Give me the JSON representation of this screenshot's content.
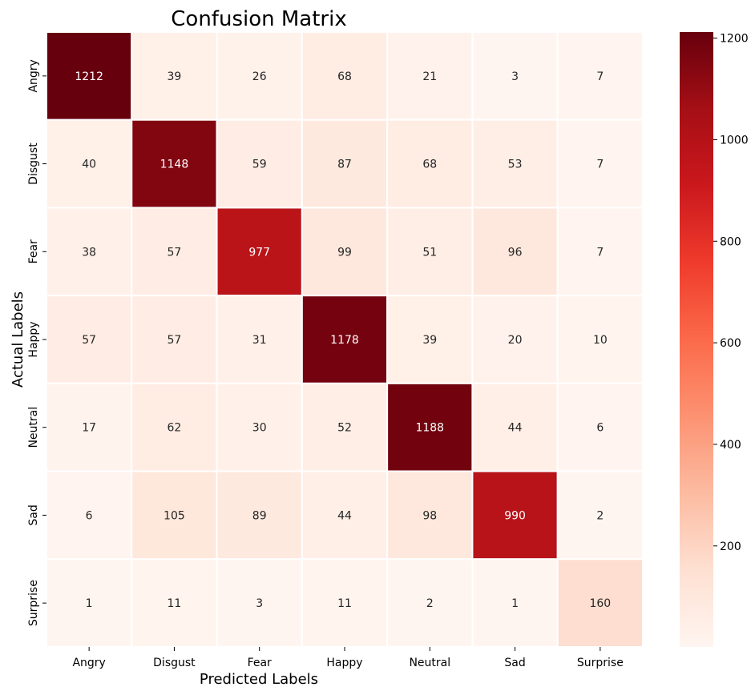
{
  "chart_data": {
    "type": "heatmap",
    "title": "Confusion Matrix",
    "xlabel": "Predicted Labels",
    "ylabel": "Actual Labels",
    "x_categories": [
      "Angry",
      "Disgust",
      "Fear",
      "Happy",
      "Neutral",
      "Sad",
      "Surprise"
    ],
    "y_categories": [
      "Angry",
      "Disgust",
      "Fear",
      "Happy",
      "Neutral",
      "Sad",
      "Surprise"
    ],
    "matrix": [
      [
        1212,
        39,
        26,
        68,
        21,
        3,
        7
      ],
      [
        40,
        1148,
        59,
        87,
        68,
        53,
        7
      ],
      [
        38,
        57,
        977,
        99,
        51,
        96,
        7
      ],
      [
        57,
        57,
        31,
        1178,
        39,
        20,
        10
      ],
      [
        17,
        62,
        30,
        52,
        1188,
        44,
        6
      ],
      [
        6,
        105,
        89,
        44,
        98,
        990,
        2
      ],
      [
        1,
        11,
        3,
        11,
        2,
        1,
        160
      ]
    ],
    "colormap": "Reds",
    "colorbar": {
      "range": [
        1,
        1212
      ],
      "ticks": [
        200,
        400,
        600,
        800,
        1000,
        1200
      ]
    }
  }
}
